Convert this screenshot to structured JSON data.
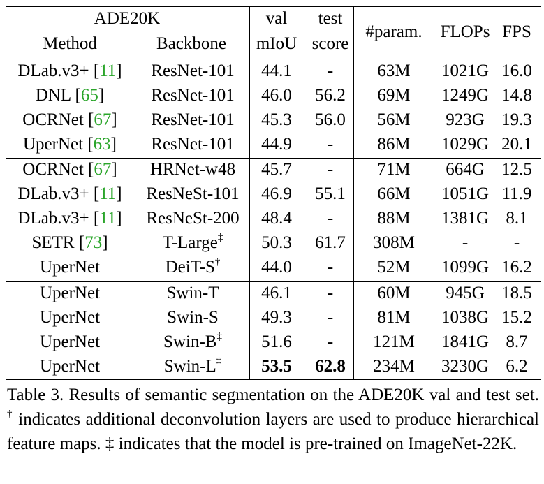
{
  "table": {
    "header": {
      "dataset": "ADE20K",
      "method": "Method",
      "backbone": "Backbone",
      "val_top": "val",
      "val_bottom": "mIoU",
      "test_top": "test",
      "test_bottom": "score",
      "param": "#param.",
      "flops": "FLOPs",
      "fps": "FPS"
    },
    "rows": [
      {
        "method": "DLab.v3+ [",
        "ref": "11",
        "close": "]",
        "backbone": "ResNet-101",
        "sup": "",
        "val": "44.1",
        "test": "-",
        "param": "63M",
        "flops": "1021G",
        "fps": "16.0"
      },
      {
        "method": "DNL [",
        "ref": "65",
        "close": "]",
        "backbone": "ResNet-101",
        "sup": "",
        "val": "46.0",
        "test": "56.2",
        "param": "69M",
        "flops": "1249G",
        "fps": "14.8"
      },
      {
        "method": "OCRNet [",
        "ref": "67",
        "close": "]",
        "backbone": "ResNet-101",
        "sup": "",
        "val": "45.3",
        "test": "56.0",
        "param": "56M",
        "flops": "923G",
        "fps": "19.3"
      },
      {
        "method": "UperNet [",
        "ref": "63",
        "close": "]",
        "backbone": "ResNet-101",
        "sup": "",
        "val": "44.9",
        "test": "-",
        "param": "86M",
        "flops": "1029G",
        "fps": "20.1"
      },
      {
        "method": "OCRNet [",
        "ref": "67",
        "close": "]",
        "backbone": "HRNet-w48",
        "sup": "",
        "val": "45.7",
        "test": "-",
        "param": "71M",
        "flops": "664G",
        "fps": "12.5"
      },
      {
        "method": "DLab.v3+ [",
        "ref": "11",
        "close": "]",
        "backbone": "ResNeSt-101",
        "sup": "",
        "val": "46.9",
        "test": "55.1",
        "param": "66M",
        "flops": "1051G",
        "fps": "11.9"
      },
      {
        "method": "DLab.v3+ [",
        "ref": "11",
        "close": "]",
        "backbone": "ResNeSt-200",
        "sup": "",
        "val": "48.4",
        "test": "-",
        "param": "88M",
        "flops": "1381G",
        "fps": "8.1"
      },
      {
        "method": "SETR [",
        "ref": "73",
        "close": "]",
        "backbone": "T-Large",
        "sup": "‡",
        "val": "50.3",
        "test": "61.7",
        "param": "308M",
        "flops": "-",
        "fps": "-"
      },
      {
        "method": "UperNet",
        "ref": "",
        "close": "",
        "backbone": "DeiT-S",
        "sup": "†",
        "val": "44.0",
        "test": "-",
        "param": "52M",
        "flops": "1099G",
        "fps": "16.2"
      },
      {
        "method": "UperNet",
        "ref": "",
        "close": "",
        "backbone": "Swin-T",
        "sup": "",
        "val": "46.1",
        "test": "-",
        "param": "60M",
        "flops": "945G",
        "fps": "18.5"
      },
      {
        "method": "UperNet",
        "ref": "",
        "close": "",
        "backbone": "Swin-S",
        "sup": "",
        "val": "49.3",
        "test": "-",
        "param": "81M",
        "flops": "1038G",
        "fps": "15.2"
      },
      {
        "method": "UperNet",
        "ref": "",
        "close": "",
        "backbone": "Swin-B",
        "sup": "‡",
        "val": "51.6",
        "test": "-",
        "param": "121M",
        "flops": "1841G",
        "fps": "8.7"
      },
      {
        "method": "UperNet",
        "ref": "",
        "close": "",
        "backbone": "Swin-L",
        "sup": "‡",
        "val": "53.5",
        "test": "62.8",
        "param": "234M",
        "flops": "3230G",
        "fps": "6.2",
        "bold_val": true,
        "bold_test": true
      }
    ]
  },
  "caption": {
    "part1": "Table 3. Results of semantic segmentation on the ADE20K val and test set. ",
    "dagger": "†",
    "part2": " indicates additional deconvolution layers are used to produce hierarchical feature maps. ‡ indicates that the model is pre-trained on ImageNet-22K."
  }
}
